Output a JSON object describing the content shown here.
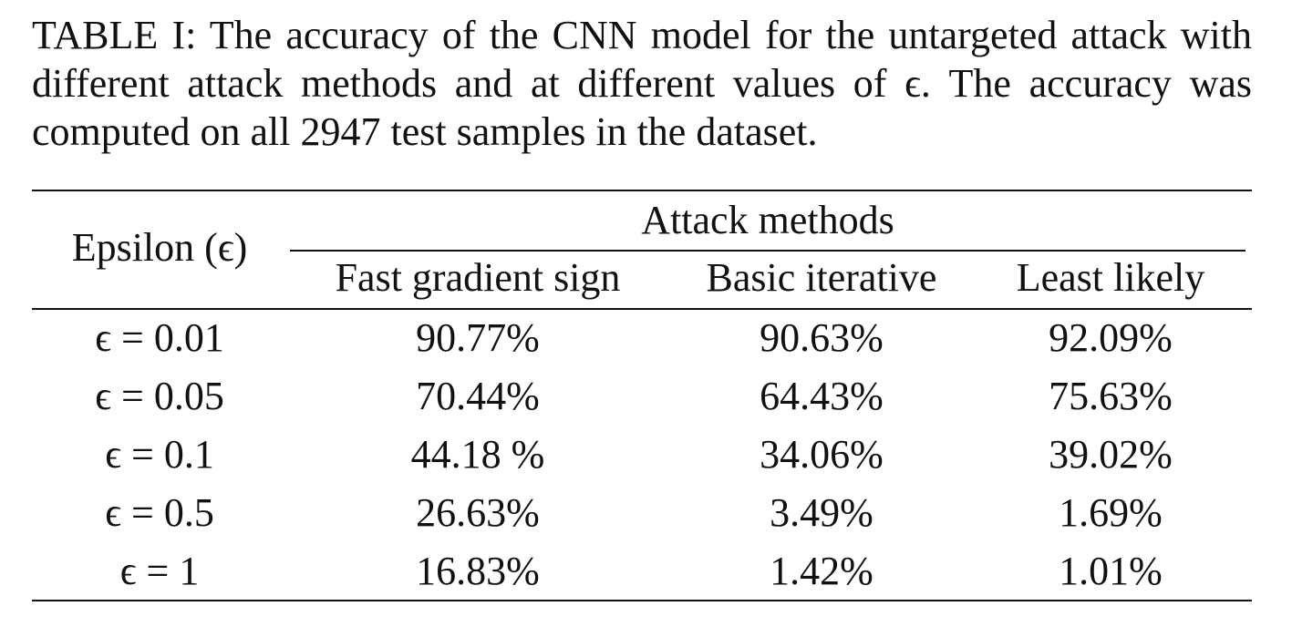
{
  "caption": "TABLE I: The accuracy of the CNN model for the untargeted attack with different attack methods and at different values of ϵ. The accuracy was computed on all 2947 test samples in the dataset.",
  "table": {
    "row_header": "Epsilon (ϵ)",
    "group_header": "Attack methods",
    "columns": [
      "Fast gradient sign",
      "Basic iterative",
      "Least likely"
    ],
    "rows": [
      {
        "epsilon": "ϵ = 0.01",
        "values": [
          "90.77%",
          "90.63%",
          "92.09%"
        ]
      },
      {
        "epsilon": "ϵ = 0.05",
        "values": [
          "70.44%",
          "64.43%",
          "75.63%"
        ]
      },
      {
        "epsilon": "ϵ = 0.1",
        "values": [
          "44.18 %",
          "34.06%",
          "39.02%"
        ]
      },
      {
        "epsilon": "ϵ = 0.5",
        "values": [
          "26.63%",
          "3.49%",
          "1.69%"
        ]
      },
      {
        "epsilon": "ϵ = 1",
        "values": [
          "16.83%",
          "1.42%",
          "1.01%"
        ]
      }
    ]
  }
}
